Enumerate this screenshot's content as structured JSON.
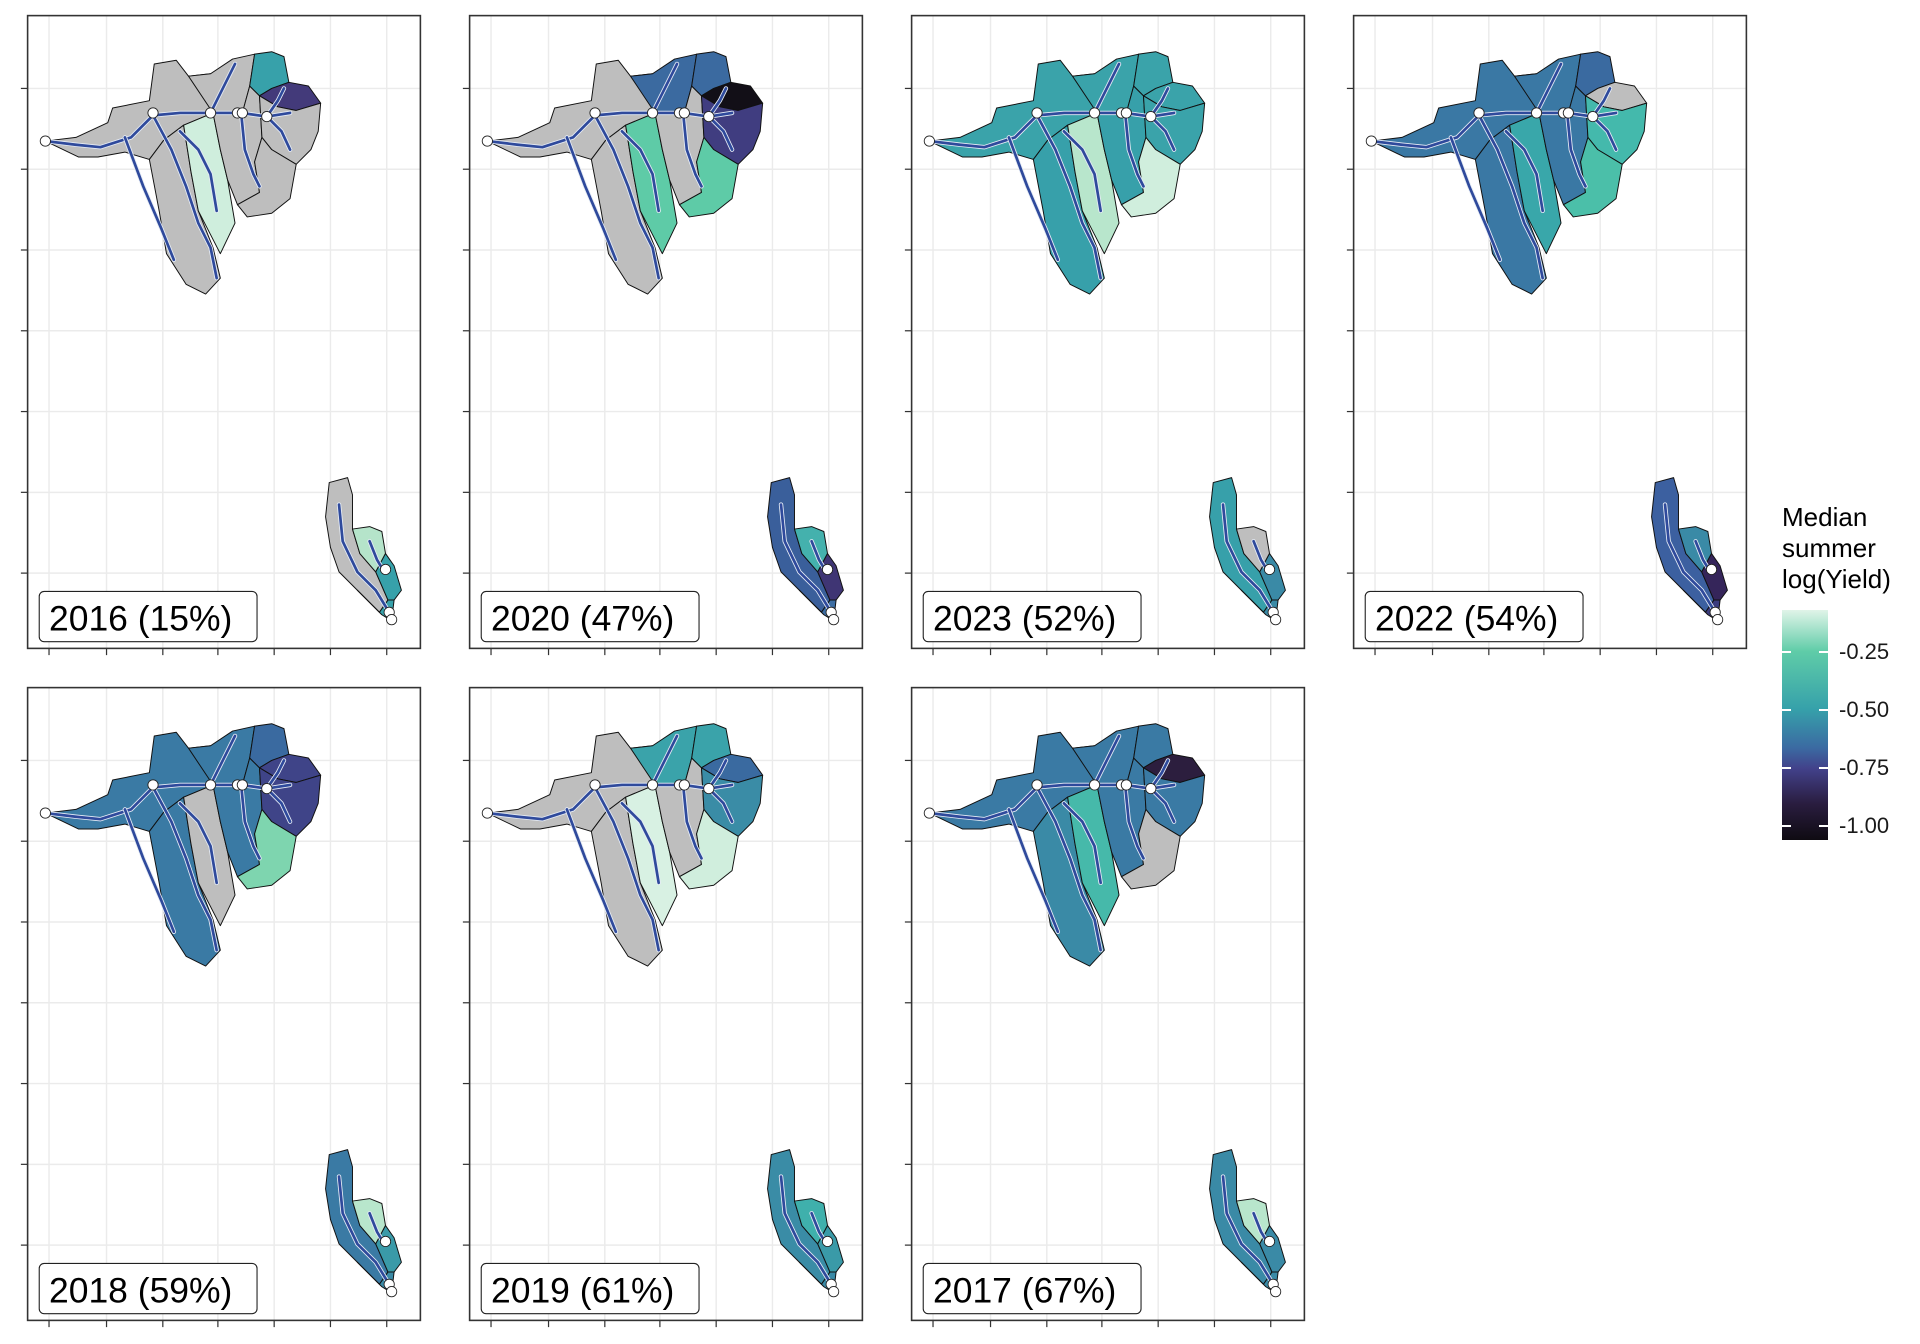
{
  "chart_data": {
    "type": "heatmap",
    "subtype": "faceted choropleth map",
    "title": "",
    "xlabel": "",
    "ylabel": "",
    "grid": true,
    "legend": {
      "title_lines": [
        "Median",
        "summer",
        "log(Yield)"
      ],
      "ticks": [
        -0.25,
        -0.5,
        -0.75,
        -1.0
      ],
      "tick_labels": [
        "-0.25",
        "-0.50",
        "-0.75",
        "-1.00"
      ],
      "range": [
        -1.06,
        -0.07
      ],
      "placement": "right"
    },
    "na_color": "#bebebe",
    "river_color": "#2f4a9c",
    "panels": [
      {
        "label": "2016 (15%)",
        "year": 2016,
        "percent": 15,
        "regions": [
          "#bebebe",
          "#bebebe",
          "#cfeedd",
          "#bebebe",
          "#bebebe",
          "#37a1aa",
          "#433a7a",
          "#bebebe",
          "#bebebe"
        ],
        "small": [
          "#bebebe",
          "#b5e4ca",
          "#37a1aa",
          "#37a1aa"
        ]
      },
      {
        "label": "2020 (47%)",
        "year": 2020,
        "percent": 47,
        "regions": [
          "#bebebe",
          "#bebebe",
          "#5ecba7",
          "#3b6aa0",
          "#bebebe",
          "#3b6aa0",
          "#120f17",
          "#403d80",
          "#5ecba7"
        ],
        "small": [
          "#3a5f9b",
          "#44b1ad",
          "#3f3574",
          "#3d6ea3"
        ]
      },
      {
        "label": "2023 (52%)",
        "year": 2023,
        "percent": 52,
        "regions": [
          "#3aa3aa",
          "#37a0aa",
          "#b8e6cc",
          "#3aa3aa",
          "#37a0aa",
          "#3aa3aa",
          "#3aa3aa",
          "#3aa3aa",
          "#d0eedd"
        ],
        "small": [
          "#37a0aa",
          "#bebebe",
          "#3a8aa6",
          "#3a8aa6"
        ]
      },
      {
        "label": "2022 (54%)",
        "year": 2022,
        "percent": 54,
        "regions": [
          "#3a78a4",
          "#3a78a4",
          "#39a7aa",
          "#3a78a4",
          "#3a78a4",
          "#3a6aa0",
          "#bebebe",
          "#44b9ac",
          "#4bbfa9"
        ],
        "small": [
          "#3c60a0",
          "#3a8aa6",
          "#35255a",
          "#3b3c7e"
        ]
      },
      {
        "label": "2018 (59%)",
        "year": 2018,
        "percent": 59,
        "regions": [
          "#3a7aa4",
          "#3a7aa4",
          "#bebebe",
          "#3a7aa4",
          "#3a7aa4",
          "#3a6aa0",
          "#3f4488",
          "#3f4488",
          "#7ed5af"
        ],
        "small": [
          "#3a7aa4",
          "#b8e6cc",
          "#3a9aa8",
          "#3a8aa6"
        ]
      },
      {
        "label": "2019 (61%)",
        "year": 2019,
        "percent": 61,
        "regions": [
          "#bebebe",
          "#bebebe",
          "#d8f1e3",
          "#3aa3aa",
          "#bebebe",
          "#3aa3aa",
          "#3a6aa0",
          "#3a8ca6",
          "#d0eedd"
        ],
        "small": [
          "#3a8ca6",
          "#3fb0ac",
          "#3a9aa8",
          "#3a8aa6"
        ]
      },
      {
        "label": "2017 (67%)",
        "year": 2017,
        "percent": 67,
        "regions": [
          "#3a7aa4",
          "#3a8aa6",
          "#46b9aa",
          "#3a7aa4",
          "#3a7aa4",
          "#3a7aa4",
          "#2c1e3e",
          "#3a7aa4",
          "#bebebe"
        ],
        "small": [
          "#3a8aa6",
          "#b8e6cc",
          "#3a8aa6",
          "#3a8aa6"
        ]
      }
    ]
  }
}
